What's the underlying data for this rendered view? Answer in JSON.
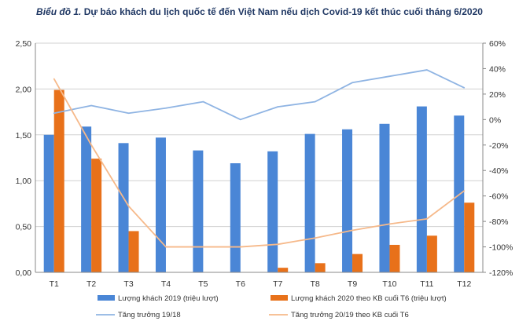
{
  "chart_data": {
    "type": "bar",
    "title_prefix": "Biểu đồ 1.",
    "title": "Dự báo khách du lịch quốc tế đến Việt Nam nếu dịch Covid-19 kết thúc cuối tháng 6/2020",
    "categories": [
      "T1",
      "T2",
      "T3",
      "T4",
      "T5",
      "T6",
      "T7",
      "T8",
      "T9",
      "T10",
      "T11",
      "T12"
    ],
    "left_axis": {
      "ylim": [
        0,
        2.5
      ],
      "ticks": [
        "0,00",
        "0,50",
        "1,00",
        "1,50",
        "2,00",
        "2,50"
      ],
      "tick_values": [
        0,
        0.5,
        1,
        1.5,
        2,
        2.5
      ]
    },
    "right_axis": {
      "ylim": [
        -120,
        60
      ],
      "ticks": [
        "-120%",
        "-100%",
        "-80%",
        "-60%",
        "-40%",
        "-20%",
        "0%",
        "20%",
        "40%",
        "60%"
      ],
      "tick_values": [
        -120,
        -100,
        -80,
        -60,
        -40,
        -20,
        0,
        20,
        40,
        60
      ]
    },
    "grid": true,
    "legend_position": "bottom",
    "series": [
      {
        "name": "Lượng khách 2019 (triệu lượt)",
        "type": "bar",
        "axis": "left",
        "color": "#4a86d6",
        "values": [
          1.5,
          1.59,
          1.41,
          1.47,
          1.33,
          1.19,
          1.32,
          1.51,
          1.56,
          1.62,
          1.81,
          1.71
        ]
      },
      {
        "name": "Lượng khách 2020  theo KB cuối T6 (triệu lượt)",
        "type": "bar",
        "axis": "left",
        "color": "#e8711a",
        "values": [
          1.99,
          1.24,
          0.45,
          0,
          0,
          0,
          0.05,
          0.1,
          0.2,
          0.3,
          0.4,
          0.76
        ]
      },
      {
        "name": "Tăng trưởng 19/18",
        "type": "line",
        "axis": "right",
        "color": "#8fb4e3",
        "values": [
          5,
          11,
          5,
          9,
          14,
          0,
          10,
          14,
          29,
          34,
          39,
          25
        ]
      },
      {
        "name": "Tăng trưởng 20/19 theo KB cuối T6",
        "type": "line",
        "axis": "right",
        "color": "#f6b98a",
        "values": [
          32,
          -20,
          -68,
          -100,
          -100,
          -100,
          -98,
          -93,
          -87,
          -82,
          -78,
          -56
        ]
      }
    ]
  }
}
